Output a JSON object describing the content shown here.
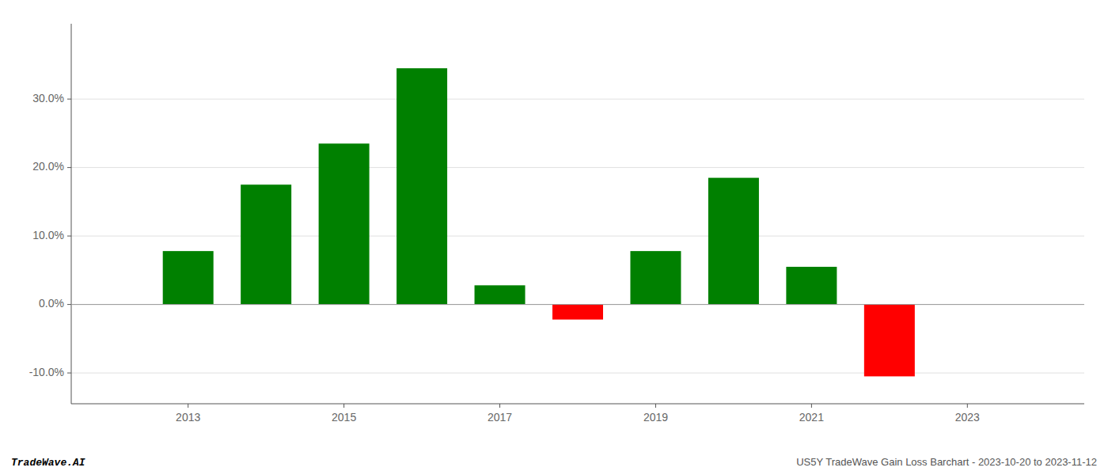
{
  "chart_data": {
    "type": "bar",
    "x": [
      2013,
      2014,
      2015,
      2016,
      2017,
      2018,
      2019,
      2020,
      2021,
      2022
    ],
    "values": [
      0.078,
      0.175,
      0.235,
      0.345,
      0.028,
      -0.022,
      0.078,
      0.185,
      0.055,
      -0.105
    ],
    "colors": [
      "#008000",
      "#008000",
      "#008000",
      "#008000",
      "#008000",
      "#ff0000",
      "#008000",
      "#008000",
      "#008000",
      "#ff0000"
    ],
    "ylim": [
      -0.145,
      0.41
    ],
    "yticks": [
      {
        "value": -0.1,
        "label": "-10.0%"
      },
      {
        "value": 0.0,
        "label": "0.0%"
      },
      {
        "value": 0.1,
        "label": "10.0%"
      },
      {
        "value": 0.2,
        "label": "20.0%"
      },
      {
        "value": 0.3,
        "label": "30.0%"
      }
    ],
    "xlim": [
      2011.5,
      2024.5
    ],
    "xticks": [
      2013,
      2015,
      2017,
      2019,
      2021,
      2023
    ],
    "grid": true,
    "annotations": [
      "TradeWave.AI",
      "US5Y TradeWave Gain Loss Barchart - 2023-10-20 to 2023-11-12"
    ]
  }
}
